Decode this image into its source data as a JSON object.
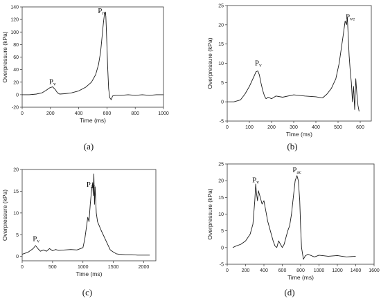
{
  "chart_data": [
    {
      "type": "line",
      "caption": "(a)",
      "xlabel": "Time (ms)",
      "ylabel": "Overpressure   (kPa)",
      "xlim": [
        0,
        1000
      ],
      "ylim": [
        -20,
        140
      ],
      "xticks": [
        0,
        200,
        400,
        600,
        800,
        1000
      ],
      "yticks": [
        -20,
        0,
        20,
        40,
        60,
        80,
        100,
        120,
        140
      ],
      "annotations": [
        {
          "main": "P",
          "sub": "v",
          "x": 215,
          "y": 17
        },
        {
          "main": "P",
          "sub": "re",
          "x": 565,
          "y": 130
        }
      ],
      "series": [
        {
          "x": [
            0,
            50,
            100,
            140,
            170,
            195,
            215,
            235,
            250,
            265,
            300,
            350,
            400,
            450,
            490,
            520,
            540,
            555,
            565,
            575,
            582,
            588,
            592,
            598,
            605,
            612,
            620,
            630,
            640,
            660,
            700,
            750,
            800,
            850,
            900,
            950,
            1000
          ],
          "y": [
            0,
            0,
            1,
            3,
            7,
            11,
            12.5,
            8,
            3,
            1,
            1.5,
            3,
            6,
            12,
            20,
            32,
            48,
            68,
            92,
            115,
            128,
            132,
            125,
            90,
            45,
            10,
            -5,
            -8,
            -2,
            -1,
            -1,
            0,
            -1,
            0,
            -1,
            0,
            0
          ]
        }
      ]
    },
    {
      "type": "line",
      "caption": "(b)",
      "xlabel": "Time (ms)",
      "ylabel": "Overpressure (kPa)",
      "xlim": [
        0,
        650
      ],
      "ylim": [
        -5,
        25
      ],
      "xticks": [
        0,
        100,
        200,
        300,
        400,
        500,
        600
      ],
      "yticks": [
        -5,
        0,
        5,
        10,
        15,
        20,
        25
      ],
      "annotations": [
        {
          "main": "P",
          "sub": "v",
          "x": 140,
          "y": 9.5
        },
        {
          "main": "P",
          "sub": "ve",
          "x": 555,
          "y": 21.5
        }
      ],
      "series": [
        {
          "x": [
            0,
            30,
            60,
            80,
            100,
            120,
            130,
            138,
            145,
            152,
            160,
            168,
            175,
            185,
            200,
            220,
            250,
            300,
            350,
            400,
            430,
            450,
            470,
            490,
            505,
            515,
            525,
            532,
            538,
            542,
            546,
            550,
            555,
            560,
            565,
            570,
            575,
            580,
            585,
            590,
            595
          ],
          "y": [
            0,
            0,
            0.5,
            2,
            4,
            6.5,
            7.8,
            8,
            7,
            5,
            3,
            1.5,
            0.8,
            1.2,
            0.8,
            1.5,
            1.2,
            1.8,
            1.5,
            1.3,
            1,
            2,
            3.5,
            6,
            10,
            14,
            18,
            21,
            20,
            22,
            17,
            12,
            8,
            5,
            0,
            4,
            -2,
            6,
            2,
            -1,
            -2.5
          ]
        }
      ]
    },
    {
      "type": "line",
      "caption": "(c)",
      "xlabel": "Time (ms)",
      "ylabel": "Overpressure (kPa)",
      "xlim": [
        0,
        2200
      ],
      "ylim": [
        -1,
        20
      ],
      "xticks": [
        0,
        500,
        1000,
        1500,
        2000
      ],
      "yticks": [
        0,
        5,
        10,
        15,
        20
      ],
      "annotations": [
        {
          "main": "P",
          "sub": "v",
          "x": 230,
          "y": 3.5
        },
        {
          "main": "P",
          "sub": "ac",
          "x": 1130,
          "y": 16
        }
      ],
      "series": [
        {
          "x": [
            0,
            100,
            180,
            220,
            260,
            300,
            350,
            400,
            450,
            500,
            550,
            600,
            700,
            800,
            900,
            1000,
            1030,
            1060,
            1080,
            1100,
            1120,
            1140,
            1160,
            1170,
            1180,
            1190,
            1200,
            1220,
            1240,
            1270,
            1300,
            1350,
            1400,
            1450,
            1500,
            1550,
            1600,
            1700,
            1800,
            1900,
            2000,
            2100
          ],
          "y": [
            0.5,
            1,
            1.8,
            2.5,
            1.8,
            1.2,
            1.5,
            1.2,
            1.8,
            1.3,
            1.6,
            1.4,
            1.5,
            1.6,
            1.5,
            2,
            4,
            7,
            9,
            8,
            12,
            15,
            17,
            14,
            19,
            12,
            16,
            10,
            8,
            7,
            6,
            4.5,
            3,
            1.5,
            1,
            0.6,
            0.5,
            0.4,
            0.4,
            0.3,
            0.3,
            0.3
          ]
        }
      ]
    },
    {
      "type": "line",
      "caption": "(d)",
      "xlabel": "Time (ms)",
      "ylabel": "Overpressure (kPa)",
      "xlim": [
        0,
        1600
      ],
      "ylim": [
        -5,
        25
      ],
      "xticks": [
        0,
        200,
        400,
        600,
        800,
        1000,
        1200,
        1400,
        1600
      ],
      "yticks": [
        -5,
        0,
        5,
        10,
        15,
        20,
        25
      ],
      "annotations": [
        {
          "main": "P",
          "sub": "v",
          "x": 310,
          "y": 19.5
        },
        {
          "main": "P",
          "sub": "ac",
          "x": 760,
          "y": 22.5
        }
      ],
      "series": [
        {
          "x": [
            60,
            100,
            150,
            200,
            250,
            280,
            300,
            310,
            320,
            330,
            340,
            360,
            380,
            400,
            420,
            440,
            460,
            480,
            500,
            520,
            540,
            560,
            580,
            600,
            620,
            640,
            660,
            680,
            700,
            720,
            740,
            760,
            775,
            790,
            800,
            810,
            830,
            850,
            880,
            950,
            1000,
            1100,
            1200,
            1300,
            1400
          ],
          "y": [
            0,
            0.5,
            1,
            2,
            4,
            7,
            14,
            19,
            16,
            14,
            17,
            15,
            13,
            14,
            11,
            8,
            6,
            4,
            2,
            0.5,
            0,
            2,
            1,
            0,
            1,
            3,
            5,
            6.5,
            10,
            15,
            20,
            21.5,
            20,
            14,
            6,
            0,
            -3.5,
            -2.5,
            -2,
            -2.8,
            -2.3,
            -2.6,
            -2.4,
            -2.8,
            -2.6
          ]
        }
      ]
    }
  ]
}
